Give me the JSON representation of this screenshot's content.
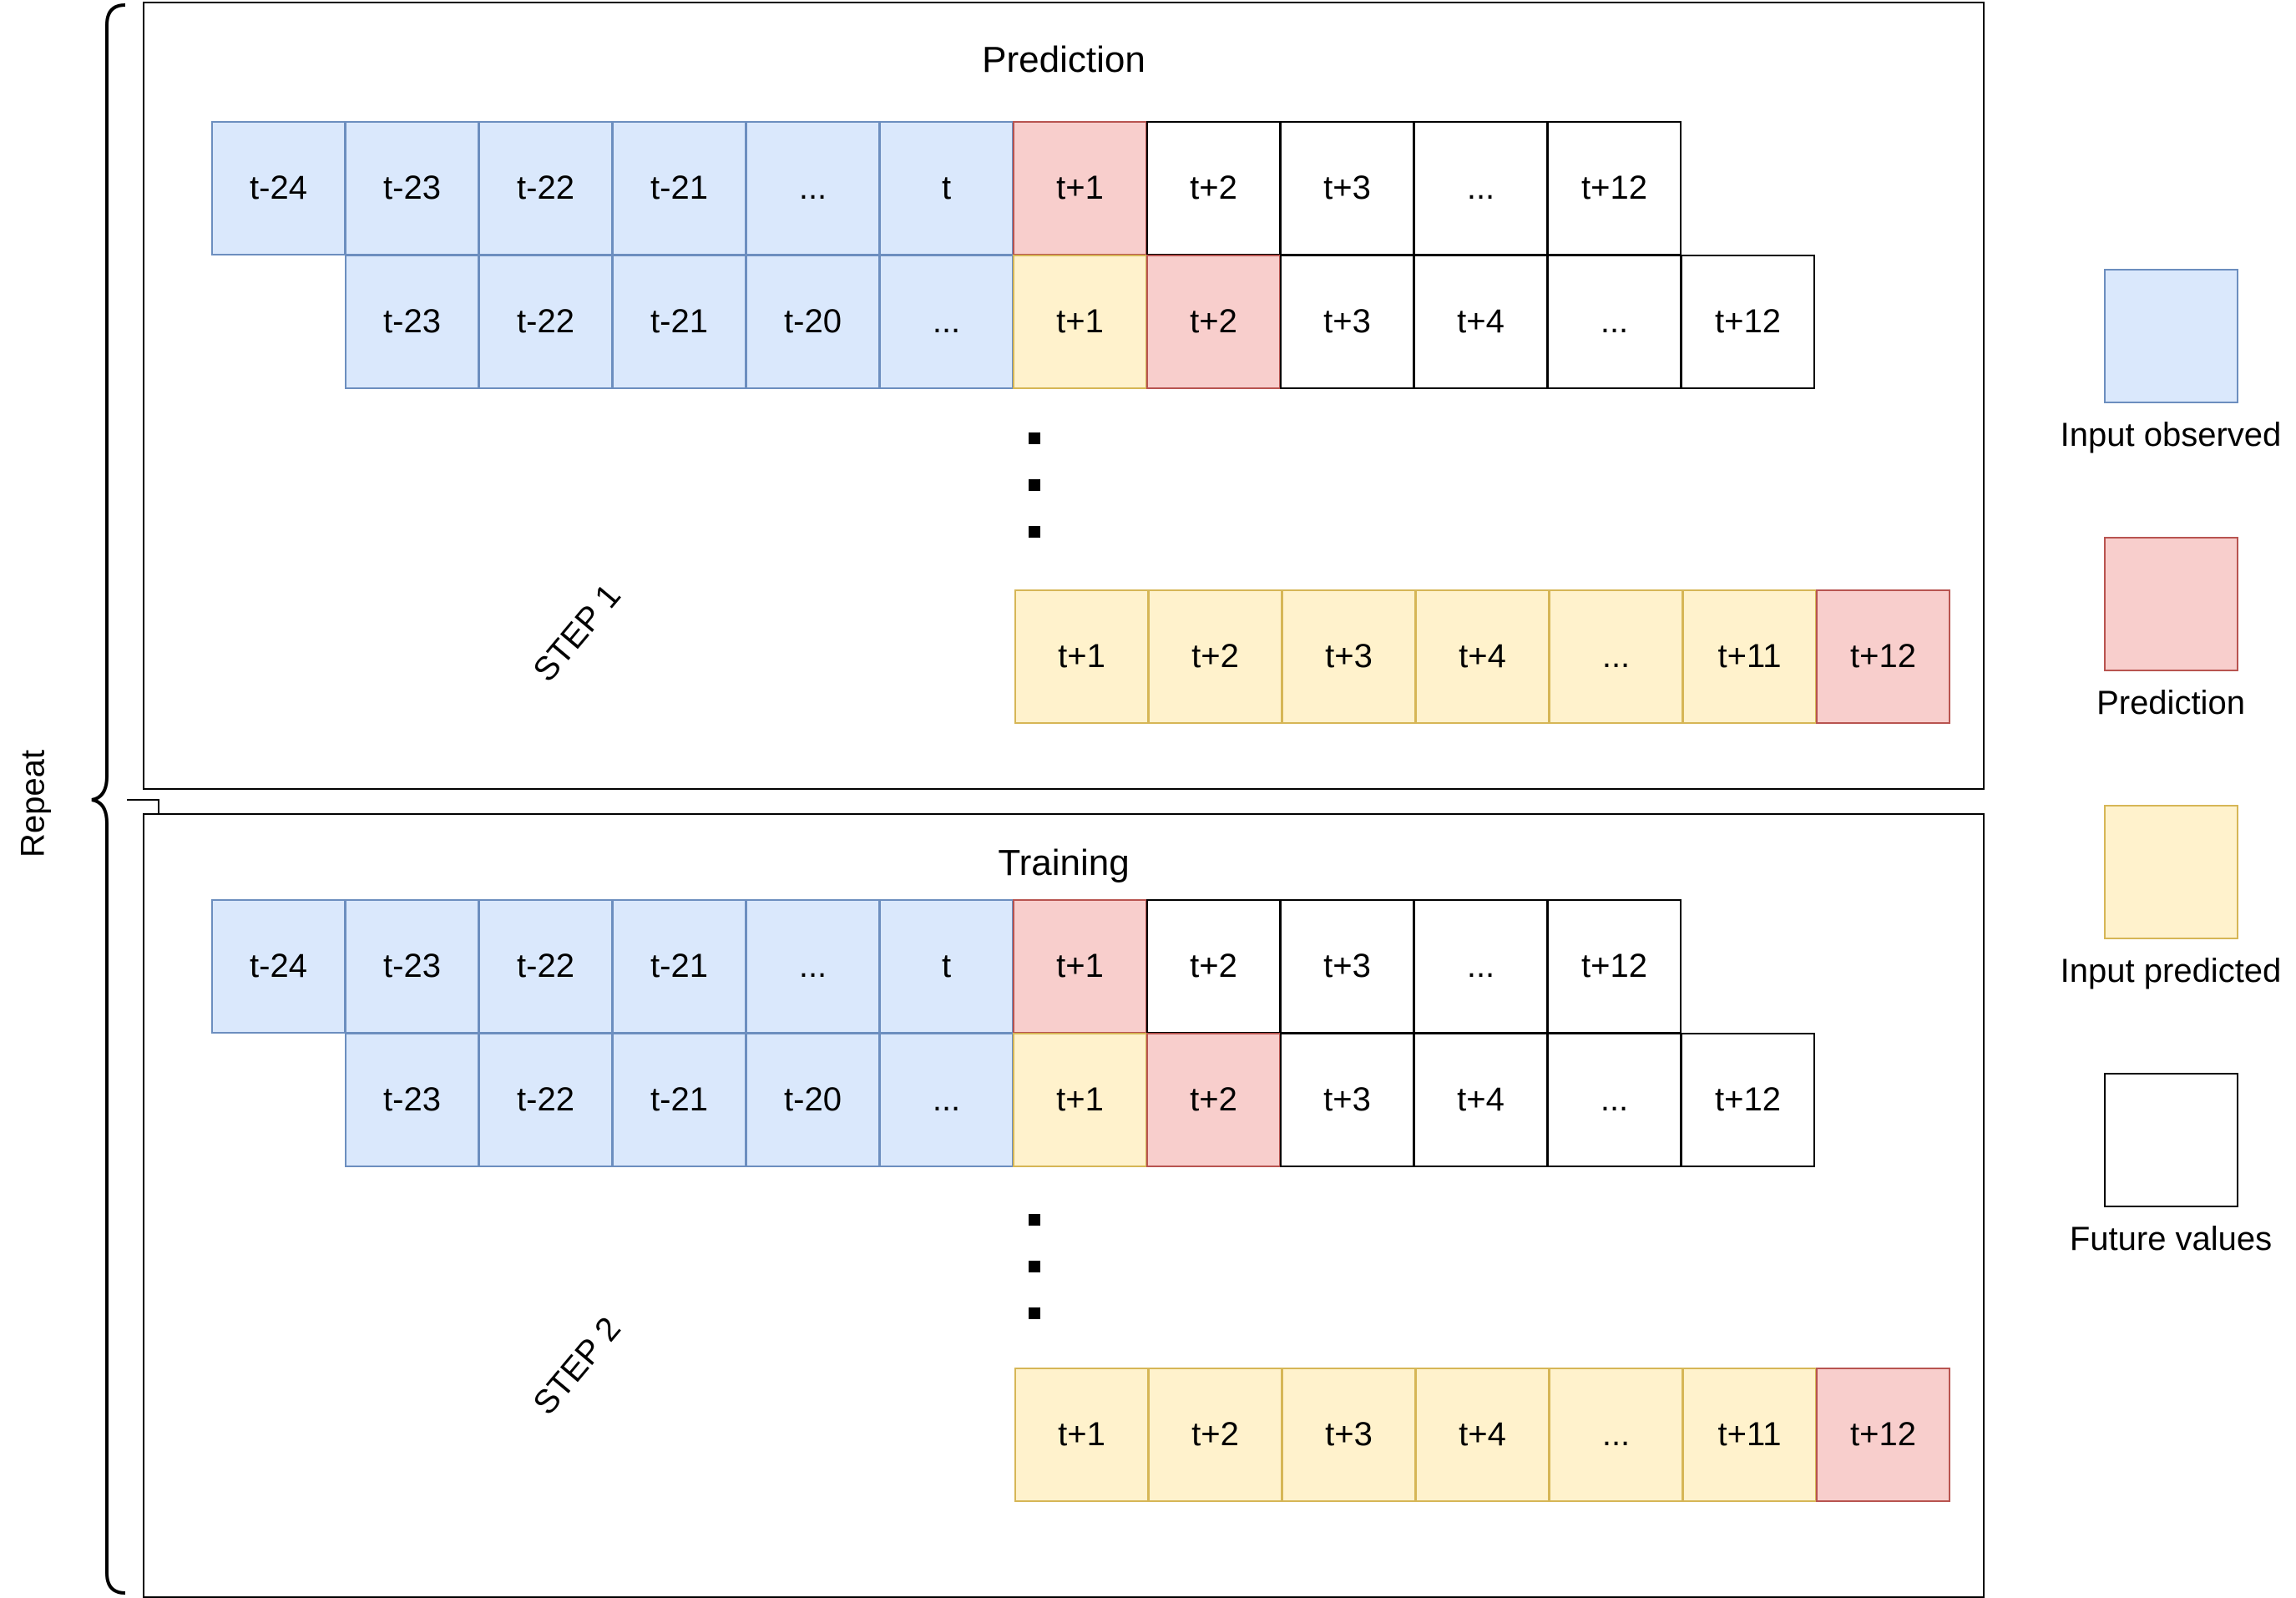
{
  "repeat_label": "Repeat",
  "panels": [
    {
      "title": "Prediction",
      "step_label": "STEP 1",
      "row1": [
        {
          "label": "t-24",
          "type": "observed"
        },
        {
          "label": "t-23",
          "type": "observed"
        },
        {
          "label": "t-22",
          "type": "observed"
        },
        {
          "label": "t-21",
          "type": "observed"
        },
        {
          "label": "...",
          "type": "observed"
        },
        {
          "label": "t",
          "type": "observed"
        },
        {
          "label": "t+1",
          "type": "prediction"
        },
        {
          "label": "t+2",
          "type": "future"
        },
        {
          "label": "t+3",
          "type": "future"
        },
        {
          "label": "...",
          "type": "future"
        },
        {
          "label": "t+12",
          "type": "future"
        }
      ],
      "row2": [
        {
          "label": "t-23",
          "type": "observed"
        },
        {
          "label": "t-22",
          "type": "observed"
        },
        {
          "label": "t-21",
          "type": "observed"
        },
        {
          "label": "t-20",
          "type": "observed"
        },
        {
          "label": "...",
          "type": "observed"
        },
        {
          "label": "t+1",
          "type": "predicted"
        },
        {
          "label": "t+2",
          "type": "prediction"
        },
        {
          "label": "t+3",
          "type": "future"
        },
        {
          "label": "t+4",
          "type": "future"
        },
        {
          "label": "...",
          "type": "future"
        },
        {
          "label": "t+12",
          "type": "future"
        }
      ],
      "row3": [
        {
          "label": "t+1",
          "type": "predicted"
        },
        {
          "label": "t+2",
          "type": "predicted"
        },
        {
          "label": "t+3",
          "type": "predicted"
        },
        {
          "label": "t+4",
          "type": "predicted"
        },
        {
          "label": "...",
          "type": "predicted"
        },
        {
          "label": "t+11",
          "type": "predicted"
        },
        {
          "label": "t+12",
          "type": "prediction"
        }
      ]
    },
    {
      "title": "Training",
      "step_label": "STEP 2",
      "row1": [
        {
          "label": "t-24",
          "type": "observed"
        },
        {
          "label": "t-23",
          "type": "observed"
        },
        {
          "label": "t-22",
          "type": "observed"
        },
        {
          "label": "t-21",
          "type": "observed"
        },
        {
          "label": "...",
          "type": "observed"
        },
        {
          "label": "t",
          "type": "observed"
        },
        {
          "label": "t+1",
          "type": "prediction"
        },
        {
          "label": "t+2",
          "type": "future"
        },
        {
          "label": "t+3",
          "type": "future"
        },
        {
          "label": "...",
          "type": "future"
        },
        {
          "label": "t+12",
          "type": "future"
        }
      ],
      "row2": [
        {
          "label": "t-23",
          "type": "observed"
        },
        {
          "label": "t-22",
          "type": "observed"
        },
        {
          "label": "t-21",
          "type": "observed"
        },
        {
          "label": "t-20",
          "type": "observed"
        },
        {
          "label": "...",
          "type": "observed"
        },
        {
          "label": "t+1",
          "type": "predicted"
        },
        {
          "label": "t+2",
          "type": "prediction"
        },
        {
          "label": "t+3",
          "type": "future"
        },
        {
          "label": "t+4",
          "type": "future"
        },
        {
          "label": "...",
          "type": "future"
        },
        {
          "label": "t+12",
          "type": "future"
        }
      ],
      "row3": [
        {
          "label": "t+1",
          "type": "predicted"
        },
        {
          "label": "t+2",
          "type": "predicted"
        },
        {
          "label": "t+3",
          "type": "predicted"
        },
        {
          "label": "t+4",
          "type": "predicted"
        },
        {
          "label": "...",
          "type": "predicted"
        },
        {
          "label": "t+11",
          "type": "predicted"
        },
        {
          "label": "t+12",
          "type": "prediction"
        }
      ]
    }
  ],
  "legend": [
    {
      "label": "Input observed",
      "type": "observed"
    },
    {
      "label": "Prediction",
      "type": "prediction"
    },
    {
      "label": "Input predicted",
      "type": "predicted"
    },
    {
      "label": "Future values",
      "type": "future"
    }
  ],
  "colors": {
    "observed_fill": "#dae8fc",
    "observed_border": "#6c8ebf",
    "prediction_fill": "#f8cecc",
    "prediction_border": "#b85450",
    "predicted_fill": "#fff2cc",
    "predicted_border": "#d6b656",
    "future_fill": "#ffffff",
    "future_border": "#000000"
  }
}
